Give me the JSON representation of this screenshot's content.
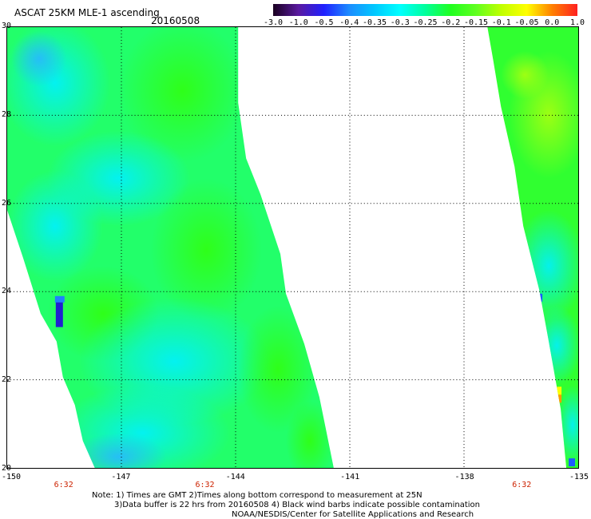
{
  "title": "ASCAT 25KM MLE-1 ascending",
  "date": "20160508",
  "colorbar": {
    "labels": [
      "-3.0",
      "-1.0",
      "-0.5",
      "-0.4",
      "-0.35",
      "-0.3",
      "-0.25",
      "-0.2",
      "-0.15",
      "-0.1",
      "-0.05",
      "0.0",
      "1.0"
    ],
    "colors": [
      "#1a0020",
      "#5a1aa0",
      "#2020ff",
      "#1c8cff",
      "#00c8ff",
      "#00ffff",
      "#00ff9c",
      "#20ff20",
      "#60ff20",
      "#c0ff00",
      "#ffff00",
      "#ff8000",
      "#ff2020"
    ]
  },
  "map": {
    "lon_range": [
      -150,
      -135
    ],
    "lat_range": [
      20,
      30
    ],
    "x_ticks": [
      "-150",
      "-147",
      "-144",
      "-141",
      "-138",
      "-135"
    ],
    "y_ticks": [
      "30",
      "28",
      "26",
      "24",
      "22",
      "20"
    ],
    "times": [
      "6:32",
      "6:32",
      "6:32"
    ]
  },
  "notes": [
    "Note: 1) Times are GMT 2)Times along bottom correspond to measurement at 25N",
    "3)Data buffer is 22 hrs from 20160508 4) Black wind barbs indicate possible contamination",
    "NOAA/NESDIS/Center for Satellite Applications and Research"
  ]
}
